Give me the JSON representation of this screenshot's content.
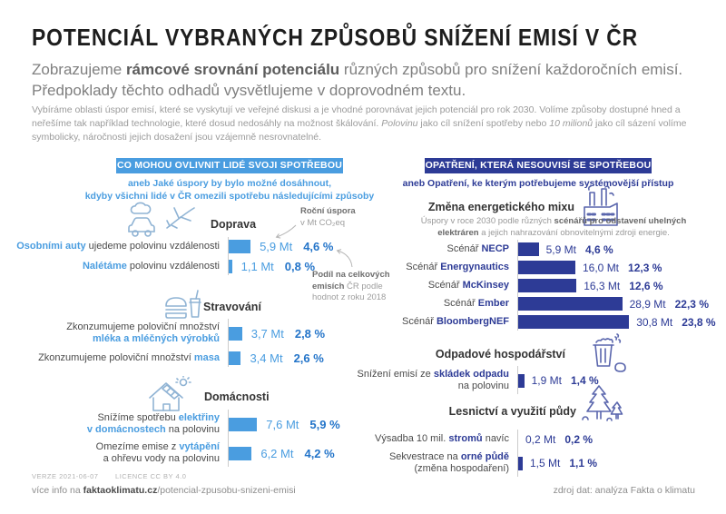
{
  "header": {
    "title": "POTENCIÁL VYBRANÝCH ZPŮSOBŮ SNÍŽENÍ EMISÍ V ČR",
    "subtitle": [
      {
        "t": "Zobrazujeme "
      },
      {
        "t": "rámcové srovnání potenciálu",
        "em": true
      },
      {
        "t": " různých způsobů pro snížení každoročních emisí. Předpoklady těchto odhadů vysvětlujeme v doprovodném textu."
      }
    ],
    "intro": [
      {
        "t": "Vybíráme oblasti úspor emisí, které se vyskytují ve veřejné diskusi a je vhodné porovnávat jejich potenciál pro rok 2030. Volíme způsoby dostupné hned a neřešíme tak například technologie, které dosud nedosáhly na možnost škálování. "
      },
      {
        "t": "Polovinu",
        "i": true
      },
      {
        "t": " jako cíl snížení spotřeby nebo "
      },
      {
        "t": "10 milionů",
        "i": true
      },
      {
        "t": " jako cíl sázení volíme symbolicky, náročnosti jejich dosažení jsou vzájemně nesrovnatelné."
      }
    ]
  },
  "left": {
    "badge": "CO MOHOU OVLIVNIT LIDÉ SVOJI SPOTŘEBOU",
    "sub1": "aneb Jaké úspory by bylo možné dosáhnout,",
    "sub2": "kdyby všichni lidé v ČR omezili spotřebu následujícími způsoby",
    "annotation_saving": {
      "line1": "Roční úspora",
      "line2": "v Mt CO₂eq"
    },
    "annotation_share": [
      {
        "t": "Podíl na celkových emisích ",
        "em": true
      },
      {
        "t": "ČR podle hodnot z roku 2018"
      }
    ],
    "groups": [
      {
        "title": "Doprava",
        "icon": "car-plane-icon",
        "rows": [
          {
            "lines": [
              [
                {
                  "t": "Osobními auty",
                  "em": true
                },
                {
                  "t": " ujedeme polovinu vzdálenosti"
                }
              ]
            ],
            "mt": 5.9,
            "mt_label": "5,9 Mt",
            "pct_label": "4,6 %"
          },
          {
            "lines": [
              [
                {
                  "t": "Nalétáme",
                  "em": true
                },
                {
                  "t": " polovinu vzdálenosti"
                }
              ]
            ],
            "mt": 1.1,
            "mt_label": "1,1 Mt",
            "pct_label": "0,8 %"
          }
        ]
      },
      {
        "title": "Stravování",
        "icon": "burger-icon",
        "rows": [
          {
            "lines": [
              [
                {
                  "t": "Zkonzumujeme poloviční množství"
                }
              ],
              [
                {
                  "t": "mléka a mléčných výrobků",
                  "em": true
                }
              ]
            ],
            "mt": 3.7,
            "mt_label": "3,7 Mt",
            "pct_label": "2,8 %"
          },
          {
            "lines": [
              [
                {
                  "t": "Zkonzumujeme poloviční množství "
                },
                {
                  "t": "masa",
                  "em": true
                }
              ]
            ],
            "mt": 3.4,
            "mt_label": "3,4 Mt",
            "pct_label": "2,6 %"
          }
        ]
      },
      {
        "title": "Domácnosti",
        "icon": "house-icon",
        "rows": [
          {
            "lines": [
              [
                {
                  "t": "Snížíme spotřebu "
                },
                {
                  "t": "elektřiny",
                  "em": true
                }
              ],
              [
                {
                  "t": "v domácnostech",
                  "em": true
                },
                {
                  "t": " na polovinu"
                }
              ]
            ],
            "mt": 7.6,
            "mt_label": "7,6 Mt",
            "pct_label": "5,9 %"
          },
          {
            "lines": [
              [
                {
                  "t": "Omezíme emise z "
                },
                {
                  "t": "vytápění",
                  "em": true
                }
              ],
              [
                {
                  "t": "a ohřevu vody na polovinu"
                }
              ]
            ],
            "mt": 6.2,
            "mt_label": "6,2 Mt",
            "pct_label": "4,2 %"
          }
        ]
      }
    ]
  },
  "right": {
    "badge": "OPATŘENÍ, KTERÁ NESOUVISÍ SE SPOTŘEBOU",
    "sub": "aneb Opatření, ke kterým potřebujeme systémovější přístup",
    "sections": [
      {
        "title": "Změna energetického mixu",
        "icon": "factory-icon",
        "desc": [
          {
            "t": "Úspory v roce 2030 podle různých "
          },
          {
            "t": "scénářů pro odstavení uhelných elektráren",
            "em": true
          },
          {
            "t": " a jejich nahrazování obnovitelnými zdroji energie."
          }
        ],
        "rows": [
          {
            "lines": [
              [
                {
                  "t": "Scénář "
                },
                {
                  "t": "NECP",
                  "em": true
                }
              ]
            ],
            "mt": 5.9,
            "mt_label": "5,9 Mt",
            "pct_label": "4,6 %"
          },
          {
            "lines": [
              [
                {
                  "t": "Scénář "
                },
                {
                  "t": "Energynautics",
                  "em": true
                }
              ]
            ],
            "mt": 16.0,
            "mt_label": "16,0 Mt",
            "pct_label": "12,3 %"
          },
          {
            "lines": [
              [
                {
                  "t": "Scénář "
                },
                {
                  "t": "McKinsey",
                  "em": true
                }
              ]
            ],
            "mt": 16.3,
            "mt_label": "16,3 Mt",
            "pct_label": "12,6 %"
          },
          {
            "lines": [
              [
                {
                  "t": "Scénář "
                },
                {
                  "t": "Ember",
                  "em": true
                }
              ]
            ],
            "mt": 28.9,
            "mt_label": "28,9 Mt",
            "pct_label": "22,3 %"
          },
          {
            "lines": [
              [
                {
                  "t": "Scénář "
                },
                {
                  "t": "BloombergNEF",
                  "em": true
                }
              ]
            ],
            "mt": 30.8,
            "mt_label": "30,8 Mt",
            "pct_label": "23,8 %"
          }
        ]
      },
      {
        "title": "Odpadové hospodářství",
        "icon": "trash-icon",
        "rows": [
          {
            "lines": [
              [
                {
                  "t": "Snížení emisí ze "
                },
                {
                  "t": "skládek odpadu",
                  "em": true
                }
              ],
              [
                {
                  "t": "na polovinu"
                }
              ]
            ],
            "mt": 1.9,
            "mt_label": "1,9 Mt",
            "pct_label": "1,4 %"
          }
        ]
      },
      {
        "title": "Lesnictví a využití půdy",
        "icon": "trees-icon",
        "rows": [
          {
            "lines": [
              [
                {
                  "t": "Výsadba 10 mil. "
                },
                {
                  "t": "stromů",
                  "em": true
                },
                {
                  "t": " navíc"
                }
              ]
            ],
            "mt": 0.2,
            "mt_label": "0,2 Mt",
            "pct_label": "0,2 %"
          },
          {
            "lines": [
              [
                {
                  "t": "Sekvestrace na "
                },
                {
                  "t": "orné půdě",
                  "em": true
                }
              ],
              [
                {
                  "t": "(změna hospodaření)"
                }
              ]
            ],
            "mt": 1.5,
            "mt_label": "1,5 Mt",
            "pct_label": "1,1 %"
          }
        ]
      }
    ]
  },
  "footer": {
    "version": "VERZE 2021-06-07",
    "license": "LICENCE CC BY 4.0",
    "info": [
      {
        "t": "více info na "
      },
      {
        "t": "faktaoklimatu.cz",
        "em": true
      },
      {
        "t": "/potencial-zpusobu-snizeni-emisi"
      }
    ],
    "source": "zdroj dat: analýza Fakta o klimatu"
  },
  "colors": {
    "light_blue": "#4a9de0",
    "dark_blue": "#2d3b96",
    "pct_blue": "#2374c9"
  },
  "chart_data": [
    {
      "type": "bar",
      "orientation": "horizontal",
      "title": "Co mohou ovlivnit lidé svoji spotřebou",
      "unit": "Mt CO₂eq ročně",
      "categories": [
        "Osobními auty ujedeme polovinu vzdálenosti",
        "Nalétáme polovinu vzdálenosti",
        "Zkonzumujeme poloviční množství mléka a mléčných výrobků",
        "Zkonzumujeme poloviční množství masa",
        "Snížíme spotřebu elektřiny v domácnostech na polovinu",
        "Omezíme emise z vytápění a ohřevu vody na polovinu"
      ],
      "groups": [
        "Doprava",
        "Doprava",
        "Stravování",
        "Stravování",
        "Domácnosti",
        "Domácnosti"
      ],
      "series": [
        {
          "name": "Roční úspora (Mt CO₂eq)",
          "values": [
            5.9,
            1.1,
            3.7,
            3.4,
            7.6,
            6.2
          ]
        },
        {
          "name": "Podíl na celkových emisích ČR 2018 (%)",
          "values": [
            4.6,
            0.8,
            2.8,
            2.6,
            5.9,
            4.2
          ]
        }
      ],
      "bar_color": "#4a9de0"
    },
    {
      "type": "bar",
      "orientation": "horizontal",
      "title": "Opatření, která nesouvisí se spotřebou",
      "unit": "Mt CO₂eq ročně",
      "categories": [
        "Scénář NECP",
        "Scénář Energynautics",
        "Scénář McKinsey",
        "Scénář Ember",
        "Scénář BloombergNEF",
        "Snížení emisí ze skládek odpadu na polovinu",
        "Výsadba 10 mil. stromů navíc",
        "Sekvestrace na orné půdě (změna hospodaření)"
      ],
      "groups": [
        "Změna energetického mixu",
        "Změna energetického mixu",
        "Změna energetického mixu",
        "Změna energetického mixu",
        "Změna energetického mixu",
        "Odpadové hospodářství",
        "Lesnictví a využití půdy",
        "Lesnictví a využití půdy"
      ],
      "series": [
        {
          "name": "Roční úspora (Mt CO₂eq)",
          "values": [
            5.9,
            16.0,
            16.3,
            28.9,
            30.8,
            1.9,
            0.2,
            1.5
          ]
        },
        {
          "name": "Podíl na celkových emisích ČR 2018 (%)",
          "values": [
            4.6,
            12.3,
            12.6,
            22.3,
            23.8,
            1.4,
            0.2,
            1.1
          ]
        }
      ],
      "bar_color": "#2d3b96"
    }
  ]
}
